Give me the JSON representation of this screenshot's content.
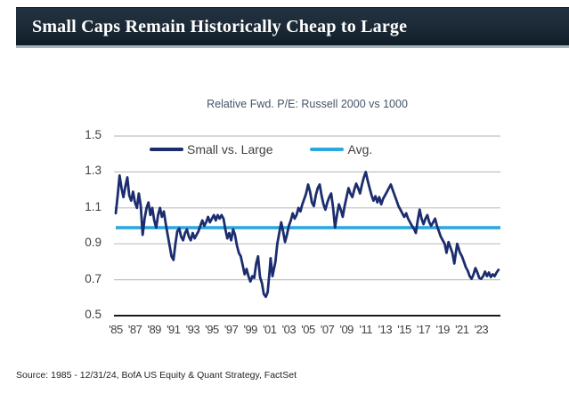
{
  "header": {
    "title": "Small Caps Remain Historically Cheap to Large",
    "banner_color": "#18async2633",
    "underline_color": "#a6b4bd"
  },
  "footer": {
    "source": "Source: 1985 - 12/31/24, BofA US Equity & Quant Strategy, FactSet"
  },
  "chart_data": {
    "type": "line",
    "title": "Relative Fwd. P/E: Russell 2000 vs 1000",
    "xlabel": "",
    "ylabel": "",
    "xlim": [
      1985,
      2025
    ],
    "ylim": [
      0.5,
      1.5
    ],
    "grid": true,
    "legend_position": "top-inside",
    "yticks": [
      1.5,
      1.3,
      1.1,
      0.9,
      0.7,
      0.5
    ],
    "xtick_years": [
      1985,
      1987,
      1989,
      1991,
      1993,
      1995,
      1997,
      1999,
      2001,
      2003,
      2005,
      2007,
      2009,
      2011,
      2013,
      2015,
      2017,
      2019,
      2021,
      2023
    ],
    "xtick_labels": [
      "'85",
      "'87",
      "'89",
      "'91",
      "'93",
      "'95",
      "'97",
      "'99",
      "'01",
      "'03",
      "'05",
      "'07",
      "'09",
      "'11",
      "'13",
      "'15",
      "'17",
      "'19",
      "'21",
      "'23"
    ],
    "avg": {
      "name": "Avg.",
      "value": 0.99,
      "color": "#2CA7E0"
    },
    "series": [
      {
        "name": "Small vs. Large",
        "color": "#1B2D6E",
        "points": [
          [
            1985.0,
            1.07
          ],
          [
            1985.2,
            1.17
          ],
          [
            1985.4,
            1.28
          ],
          [
            1985.6,
            1.21
          ],
          [
            1985.8,
            1.16
          ],
          [
            1986.0,
            1.22
          ],
          [
            1986.2,
            1.27
          ],
          [
            1986.4,
            1.17
          ],
          [
            1986.6,
            1.14
          ],
          [
            1986.8,
            1.19
          ],
          [
            1987.0,
            1.13
          ],
          [
            1987.2,
            1.1
          ],
          [
            1987.4,
            1.18
          ],
          [
            1987.6,
            1.11
          ],
          [
            1987.8,
            0.95
          ],
          [
            1988.0,
            1.04
          ],
          [
            1988.2,
            1.1
          ],
          [
            1988.4,
            1.13
          ],
          [
            1988.6,
            1.06
          ],
          [
            1988.8,
            1.1
          ],
          [
            1989.0,
            1.03
          ],
          [
            1989.2,
            0.99
          ],
          [
            1989.4,
            1.06
          ],
          [
            1989.6,
            1.1
          ],
          [
            1989.8,
            1.05
          ],
          [
            1990.0,
            1.08
          ],
          [
            1990.2,
            1.01
          ],
          [
            1990.4,
            0.95
          ],
          [
            1990.6,
            0.89
          ],
          [
            1990.8,
            0.83
          ],
          [
            1991.0,
            0.81
          ],
          [
            1991.2,
            0.9
          ],
          [
            1991.4,
            0.97
          ],
          [
            1991.6,
            0.985
          ],
          [
            1991.8,
            0.94
          ],
          [
            1992.0,
            0.92
          ],
          [
            1992.2,
            0.96
          ],
          [
            1992.4,
            0.98
          ],
          [
            1992.6,
            0.94
          ],
          [
            1992.8,
            0.92
          ],
          [
            1993.0,
            0.96
          ],
          [
            1993.2,
            0.93
          ],
          [
            1993.4,
            0.95
          ],
          [
            1993.6,
            0.97
          ],
          [
            1993.8,
            1.0
          ],
          [
            1994.0,
            1.03
          ],
          [
            1994.2,
            1.0
          ],
          [
            1994.4,
            1.02
          ],
          [
            1994.6,
            1.05
          ],
          [
            1994.8,
            1.02
          ],
          [
            1995.0,
            1.04
          ],
          [
            1995.2,
            1.06
          ],
          [
            1995.4,
            1.03
          ],
          [
            1995.6,
            1.06
          ],
          [
            1995.8,
            1.04
          ],
          [
            1996.0,
            1.06
          ],
          [
            1996.2,
            1.04
          ],
          [
            1996.4,
            0.98
          ],
          [
            1996.6,
            0.93
          ],
          [
            1996.8,
            0.96
          ],
          [
            1997.0,
            0.92
          ],
          [
            1997.2,
            0.98
          ],
          [
            1997.4,
            0.95
          ],
          [
            1997.6,
            0.89
          ],
          [
            1997.8,
            0.85
          ],
          [
            1998.0,
            0.83
          ],
          [
            1998.2,
            0.78
          ],
          [
            1998.4,
            0.73
          ],
          [
            1998.6,
            0.76
          ],
          [
            1998.8,
            0.72
          ],
          [
            1999.0,
            0.69
          ],
          [
            1999.2,
            0.72
          ],
          [
            1999.4,
            0.71
          ],
          [
            1999.6,
            0.79
          ],
          [
            1999.8,
            0.83
          ],
          [
            2000.0,
            0.715
          ],
          [
            2000.2,
            0.68
          ],
          [
            2000.4,
            0.62
          ],
          [
            2000.6,
            0.605
          ],
          [
            2000.8,
            0.63
          ],
          [
            2001.0,
            0.75
          ],
          [
            2001.1,
            0.82
          ],
          [
            2001.3,
            0.72
          ],
          [
            2001.6,
            0.8
          ],
          [
            2001.8,
            0.9
          ],
          [
            2002.0,
            0.96
          ],
          [
            2002.2,
            1.02
          ],
          [
            2002.4,
            0.97
          ],
          [
            2002.6,
            0.91
          ],
          [
            2002.8,
            0.95
          ],
          [
            2003.0,
            1.0
          ],
          [
            2003.2,
            1.03
          ],
          [
            2003.4,
            1.07
          ],
          [
            2003.6,
            1.04
          ],
          [
            2003.8,
            1.06
          ],
          [
            2004.0,
            1.1
          ],
          [
            2004.2,
            1.08
          ],
          [
            2004.4,
            1.12
          ],
          [
            2004.6,
            1.15
          ],
          [
            2004.8,
            1.18
          ],
          [
            2005.0,
            1.23
          ],
          [
            2005.2,
            1.19
          ],
          [
            2005.4,
            1.13
          ],
          [
            2005.6,
            1.11
          ],
          [
            2005.8,
            1.17
          ],
          [
            2006.0,
            1.21
          ],
          [
            2006.2,
            1.23
          ],
          [
            2006.4,
            1.17
          ],
          [
            2006.6,
            1.12
          ],
          [
            2006.8,
            1.09
          ],
          [
            2007.0,
            1.13
          ],
          [
            2007.2,
            1.16
          ],
          [
            2007.4,
            1.18
          ],
          [
            2007.6,
            1.1
          ],
          [
            2007.8,
            0.99
          ],
          [
            2008.0,
            1.06
          ],
          [
            2008.2,
            1.12
          ],
          [
            2008.4,
            1.09
          ],
          [
            2008.6,
            1.05
          ],
          [
            2008.8,
            1.11
          ],
          [
            2009.0,
            1.16
          ],
          [
            2009.2,
            1.21
          ],
          [
            2009.4,
            1.18
          ],
          [
            2009.6,
            1.16
          ],
          [
            2009.8,
            1.2
          ],
          [
            2010.0,
            1.235
          ],
          [
            2010.2,
            1.21
          ],
          [
            2010.4,
            1.18
          ],
          [
            2010.6,
            1.23
          ],
          [
            2010.8,
            1.27
          ],
          [
            2011.0,
            1.3
          ],
          [
            2011.2,
            1.25
          ],
          [
            2011.4,
            1.21
          ],
          [
            2011.6,
            1.17
          ],
          [
            2011.8,
            1.14
          ],
          [
            2012.0,
            1.165
          ],
          [
            2012.2,
            1.13
          ],
          [
            2012.4,
            1.16
          ],
          [
            2012.6,
            1.12
          ],
          [
            2012.8,
            1.15
          ],
          [
            2013.0,
            1.17
          ],
          [
            2013.2,
            1.19
          ],
          [
            2013.4,
            1.21
          ],
          [
            2013.6,
            1.23
          ],
          [
            2013.8,
            1.2
          ],
          [
            2014.0,
            1.17
          ],
          [
            2014.2,
            1.14
          ],
          [
            2014.4,
            1.11
          ],
          [
            2014.6,
            1.09
          ],
          [
            2014.8,
            1.07
          ],
          [
            2015.0,
            1.05
          ],
          [
            2015.2,
            1.07
          ],
          [
            2015.4,
            1.04
          ],
          [
            2015.6,
            1.02
          ],
          [
            2015.8,
            1.0
          ],
          [
            2016.0,
            0.985
          ],
          [
            2016.2,
            0.96
          ],
          [
            2016.4,
            1.03
          ],
          [
            2016.6,
            1.09
          ],
          [
            2016.8,
            1.04
          ],
          [
            2017.0,
            1.01
          ],
          [
            2017.2,
            1.04
          ],
          [
            2017.4,
            1.06
          ],
          [
            2017.6,
            1.02
          ],
          [
            2017.8,
            1.0
          ],
          [
            2018.0,
            1.02
          ],
          [
            2018.2,
            1.04
          ],
          [
            2018.4,
            1.0
          ],
          [
            2018.6,
            0.97
          ],
          [
            2018.8,
            0.94
          ],
          [
            2019.0,
            0.92
          ],
          [
            2019.2,
            0.9
          ],
          [
            2019.4,
            0.85
          ],
          [
            2019.6,
            0.91
          ],
          [
            2019.8,
            0.88
          ],
          [
            2020.0,
            0.85
          ],
          [
            2020.2,
            0.79
          ],
          [
            2020.5,
            0.9
          ],
          [
            2020.8,
            0.85
          ],
          [
            2021.0,
            0.83
          ],
          [
            2021.2,
            0.8
          ],
          [
            2021.4,
            0.77
          ],
          [
            2021.6,
            0.75
          ],
          [
            2021.8,
            0.72
          ],
          [
            2022.0,
            0.705
          ],
          [
            2022.2,
            0.73
          ],
          [
            2022.4,
            0.765
          ],
          [
            2022.6,
            0.74
          ],
          [
            2022.8,
            0.71
          ],
          [
            2023.0,
            0.705
          ],
          [
            2023.2,
            0.72
          ],
          [
            2023.4,
            0.745
          ],
          [
            2023.6,
            0.72
          ],
          [
            2023.8,
            0.74
          ],
          [
            2024.0,
            0.715
          ],
          [
            2024.2,
            0.73
          ],
          [
            2024.4,
            0.72
          ],
          [
            2024.6,
            0.74
          ],
          [
            2024.8,
            0.755
          ]
        ]
      }
    ],
    "style": {
      "grid_color": "#C1C1C1",
      "axis_color": "#1a1a1a",
      "tick_text_color": "#3f3f3f",
      "title_color": "#44546A",
      "series_width": 2.8,
      "avg_width": 3.6
    }
  }
}
